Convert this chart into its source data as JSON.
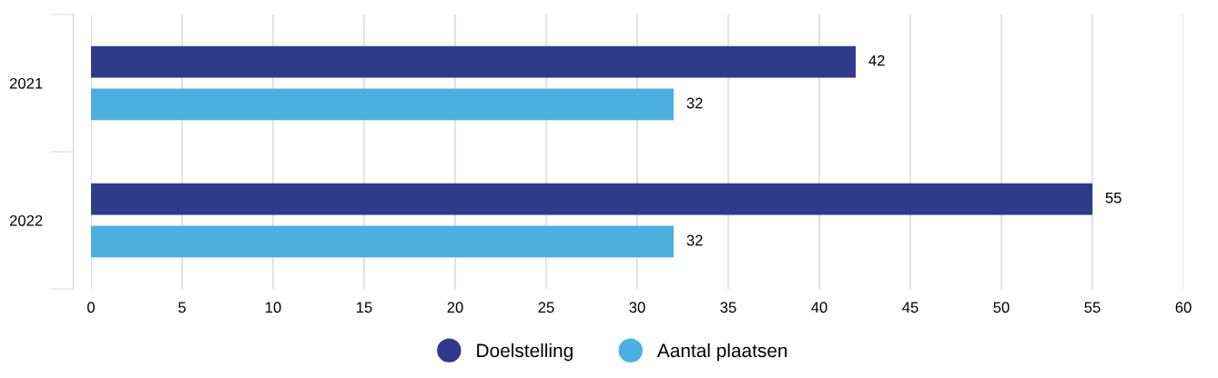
{
  "chart_data": {
    "type": "bar",
    "orientation": "horizontal",
    "categories": [
      "2021",
      "2022"
    ],
    "series": [
      {
        "name": "Doelstelling",
        "color": "#2e3a8a",
        "values": [
          42,
          55
        ]
      },
      {
        "name": "Aantal plaatsen",
        "color": "#4bafe0",
        "values": [
          32,
          32
        ]
      }
    ],
    "xlim": [
      0,
      60
    ],
    "xticks": [
      0,
      5,
      10,
      15,
      20,
      25,
      30,
      35,
      40,
      45,
      50,
      55,
      60
    ],
    "grid": "x",
    "legend": "bottom",
    "data_labels": true
  }
}
